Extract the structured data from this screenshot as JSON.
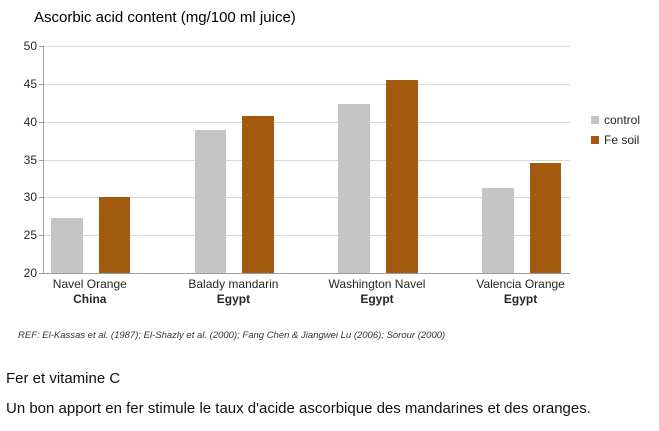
{
  "chart_data": {
    "type": "bar",
    "title": "Ascorbic acid content (mg/100 ml juice)",
    "categories": [
      {
        "name": "Navel Orange",
        "country": "China"
      },
      {
        "name": "Balady mandarin",
        "country": "Egypt"
      },
      {
        "name": "Washington Navel",
        "country": "Egypt"
      },
      {
        "name": "Valencia Orange",
        "country": "Egypt"
      }
    ],
    "series": [
      {
        "name": "control",
        "color": "#c5c5c5",
        "values": [
          27.3,
          38.9,
          42.4,
          31.2
        ]
      },
      {
        "name": "Fe soil",
        "color": "#a15a0e",
        "values": [
          30.0,
          40.8,
          45.5,
          34.6
        ]
      }
    ],
    "xlabel": "",
    "ylabel": "",
    "ylim": [
      20,
      50
    ],
    "yticks": [
      20,
      25,
      30,
      35,
      40,
      45,
      50
    ],
    "grid": true,
    "legend_position": "right",
    "colors": {
      "gridline": "#d9d9d9",
      "axis": "#9e9e9e",
      "control_bar": "#c5c5c5",
      "fe_soil_bar": "#a15a0e"
    }
  },
  "reference": "REF: El-Kassas et al. (1987); El-Shazly et al. (2000); Fang Chen & Jiangwei Lu (2006); Sorour (2000)",
  "caption": {
    "heading": "Fer et vitamine C",
    "body": "Un bon apport en fer stimule le taux d'acide ascorbique des mandarines et des oranges."
  }
}
